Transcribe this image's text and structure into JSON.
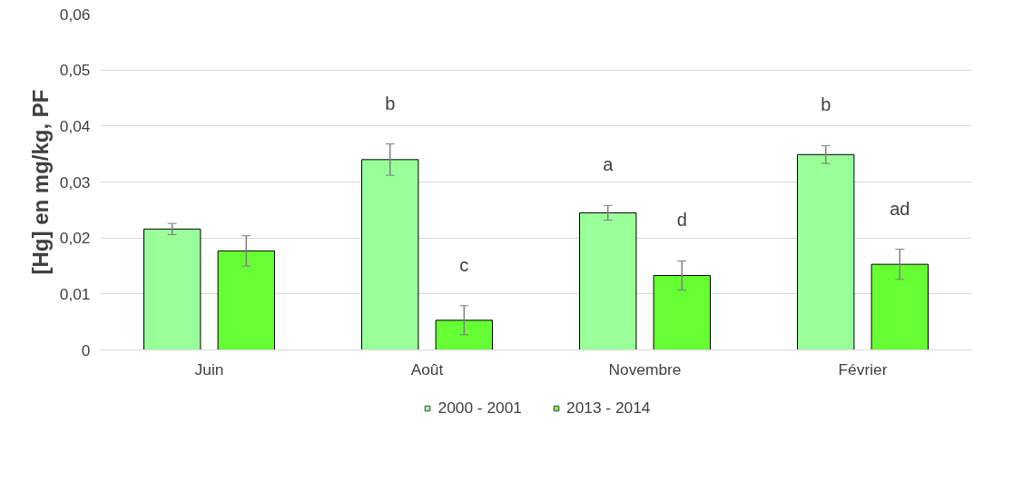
{
  "chart_data": {
    "type": "bar",
    "ylabel": "[Hg] en mg/kg, PF",
    "categories": [
      "Juin",
      "Août",
      "Novembre",
      "Février"
    ],
    "series": [
      {
        "name": "2000 - 2001",
        "color": "#99ff99",
        "values": [
          0.0216,
          0.034,
          0.0245,
          0.0349
        ],
        "errors": [
          0.001,
          0.0028,
          0.0013,
          0.0016
        ],
        "value_labels": [
          null,
          "b",
          "a",
          "b"
        ]
      },
      {
        "name": "2013 - 2014",
        "color": "#66ff33",
        "values": [
          0.0177,
          0.0053,
          0.0133,
          0.0153
        ],
        "errors": [
          0.0027,
          0.0026,
          0.0026,
          0.0027
        ],
        "value_labels": [
          null,
          "c",
          "d",
          "ad"
        ]
      }
    ],
    "ylim": [
      0,
      0.06
    ],
    "yticks": [
      {
        "value": 0,
        "label": "0"
      },
      {
        "value": 0.01,
        "label": "0,01"
      },
      {
        "value": 0.02,
        "label": "0,02"
      },
      {
        "value": 0.03,
        "label": "0,03"
      },
      {
        "value": 0.04,
        "label": "0,04"
      },
      {
        "value": 0.05,
        "label": "0,05"
      },
      {
        "value": 0.06,
        "label": "0,06"
      }
    ],
    "grid": "y",
    "legend": "bottom"
  }
}
